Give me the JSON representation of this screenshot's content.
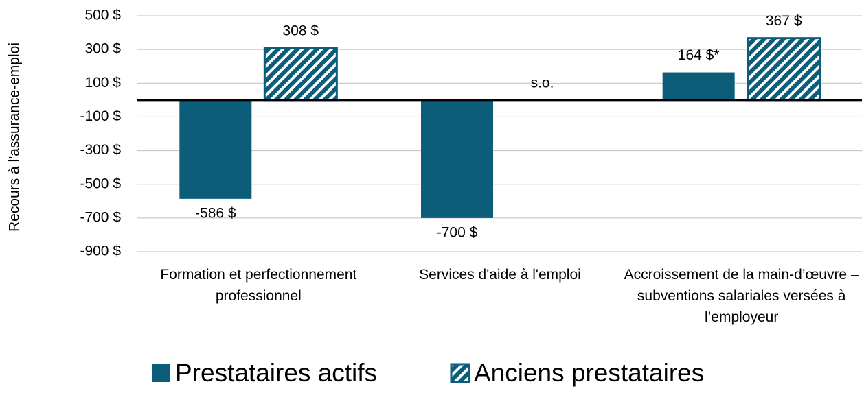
{
  "chart_data": {
    "type": "bar",
    "y_label": "Recours à l'assurance-emploi",
    "categories": [
      "Formation et perfectionnement professionnel",
      "Services d'aide à l'emploi",
      "Accroissement de la main-d’œuvre – subventions salariales versées à l’employeur"
    ],
    "series": [
      {
        "name": "Prestataires actifs",
        "color": "#0b5d7a",
        "pattern": "solid",
        "values": [
          -586,
          -700,
          164
        ],
        "value_labels": [
          "-586 $",
          "-700 $",
          "164 $*"
        ]
      },
      {
        "name": "Anciens prestataires",
        "color": "#0b5d7a",
        "pattern": "hatch",
        "values": [
          308,
          null,
          367
        ],
        "value_labels": [
          "308 $",
          "s.o.",
          "367 $"
        ]
      }
    ],
    "ylim": [
      -900,
      500
    ],
    "yticks": [
      {
        "value": 500,
        "label": "500 $"
      },
      {
        "value": 300,
        "label": "300 $"
      },
      {
        "value": 100,
        "label": "100 $"
      },
      {
        "value": -100,
        "label": "-100 $"
      },
      {
        "value": -300,
        "label": "-300 $"
      },
      {
        "value": -500,
        "label": "-500 $"
      },
      {
        "value": -700,
        "label": "-700 $"
      },
      {
        "value": -900,
        "label": "-900 $"
      }
    ],
    "grid": true,
    "legend": "bottom"
  }
}
